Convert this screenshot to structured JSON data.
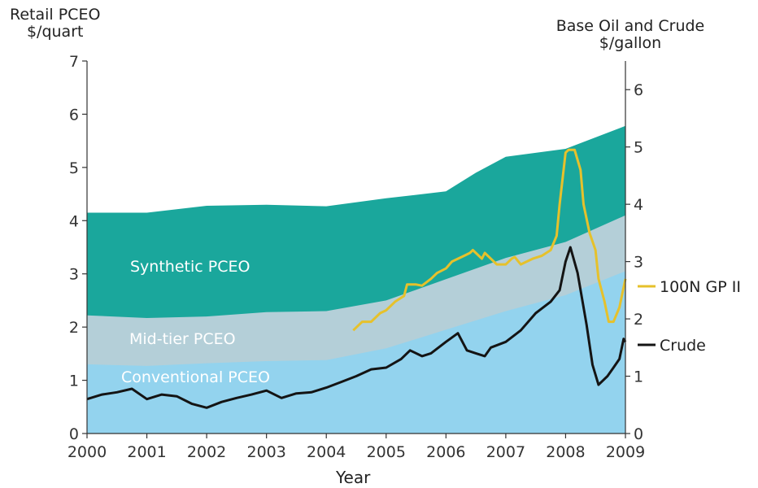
{
  "left_axis_title": [
    "Retail PCEO",
    "$/quart"
  ],
  "right_axis_title": [
    "Base Oil and Crude",
    "$/gallon"
  ],
  "x_axis_title": "Year",
  "chart_data": {
    "type": "area",
    "title": "",
    "xlabel": "Year",
    "ylabel_left": "Retail PCEO $/quart",
    "ylabel_right": "Base Oil and Crude $/gallon",
    "xlim": [
      2000,
      2009
    ],
    "ylim_left": [
      0,
      7
    ],
    "ylim_right": [
      0,
      6.5
    ],
    "x_ticks": [
      "2000",
      "2001",
      "2002",
      "2003",
      "2004",
      "2005",
      "2006",
      "2007",
      "2008",
      "2009"
    ],
    "left_ticks": [
      "0",
      "1",
      "2",
      "3",
      "4",
      "5",
      "6",
      "7"
    ],
    "right_ticks": [
      "0",
      "1",
      "2",
      "3",
      "4",
      "5",
      "6"
    ],
    "grid": false,
    "colors": {
      "synthetic": "#1aa79c",
      "midtier": "#b4cfd8",
      "conventional": "#93d3ee",
      "base_oil": "#e6c12b",
      "crude": "#141414"
    },
    "area_series": [
      {
        "name": "Synthetic PCEO",
        "axis": "left",
        "x": [
          2000,
          2001,
          2002,
          2003,
          2004,
          2005,
          2006,
          2006.5,
          2007,
          2008,
          2009
        ],
        "y": [
          4.15,
          4.15,
          4.28,
          4.3,
          4.27,
          4.42,
          4.55,
          4.9,
          5.2,
          5.35,
          5.78
        ]
      },
      {
        "name": "Mid-tier PCEO",
        "axis": "left",
        "x": [
          2000,
          2001,
          2002,
          2003,
          2004,
          2005,
          2006,
          2007,
          2008,
          2009
        ],
        "y": [
          2.22,
          2.17,
          2.2,
          2.28,
          2.3,
          2.5,
          2.9,
          3.3,
          3.6,
          4.1
        ]
      },
      {
        "name": "Conventional PCEO",
        "axis": "left",
        "x": [
          2000,
          2001,
          2002,
          2003,
          2004,
          2005,
          2006,
          2007,
          2008,
          2009
        ],
        "y": [
          1.3,
          1.27,
          1.32,
          1.36,
          1.38,
          1.6,
          1.95,
          2.3,
          2.6,
          3.05
        ]
      }
    ],
    "line_series": [
      {
        "name": "100N GP II",
        "axis": "right",
        "x": [
          2004.45,
          2004.6,
          2004.75,
          2004.9,
          2005.0,
          2005.15,
          2005.3,
          2005.35,
          2005.5,
          2005.6,
          2005.75,
          2005.85,
          2006.0,
          2006.1,
          2006.2,
          2006.3,
          2006.4,
          2006.45,
          2006.5,
          2006.6,
          2006.65,
          2006.75,
          2006.85,
          2007.0,
          2007.1,
          2007.15,
          2007.25,
          2007.35,
          2007.45,
          2007.6,
          2007.75,
          2007.85,
          2007.9,
          2008.0,
          2008.05,
          2008.15,
          2008.25,
          2008.3,
          2008.4,
          2008.5,
          2008.55,
          2008.65,
          2008.72,
          2008.8,
          2008.9,
          2009.0
        ],
        "y": [
          1.8,
          1.95,
          1.95,
          2.1,
          2.15,
          2.3,
          2.4,
          2.6,
          2.6,
          2.58,
          2.7,
          2.8,
          2.88,
          3.0,
          3.05,
          3.1,
          3.15,
          3.2,
          3.15,
          3.05,
          3.15,
          3.05,
          2.95,
          2.95,
          3.05,
          3.08,
          2.95,
          3.0,
          3.05,
          3.1,
          3.2,
          3.45,
          4.0,
          4.9,
          4.95,
          4.95,
          4.6,
          4.0,
          3.5,
          3.2,
          2.7,
          2.3,
          1.95,
          1.95,
          2.2,
          2.7
        ]
      },
      {
        "name": "Crude",
        "axis": "right",
        "x": [
          2000,
          2000.25,
          2000.5,
          2000.75,
          2001,
          2001.25,
          2001.5,
          2001.75,
          2002,
          2002.25,
          2002.5,
          2002.75,
          2003,
          2003.25,
          2003.5,
          2003.75,
          2004,
          2004.25,
          2004.5,
          2004.75,
          2005,
          2005.25,
          2005.4,
          2005.6,
          2005.75,
          2006,
          2006.2,
          2006.35,
          2006.5,
          2006.65,
          2006.75,
          2007,
          2007.25,
          2007.5,
          2007.75,
          2007.9,
          2008,
          2008.08,
          2008.2,
          2008.35,
          2008.45,
          2008.55,
          2008.7,
          2008.8,
          2008.9,
          2008.97,
          2009.0
        ],
        "y": [
          0.6,
          0.68,
          0.72,
          0.78,
          0.6,
          0.68,
          0.65,
          0.52,
          0.45,
          0.55,
          0.62,
          0.68,
          0.75,
          0.62,
          0.7,
          0.72,
          0.8,
          0.9,
          1.0,
          1.12,
          1.15,
          1.3,
          1.45,
          1.35,
          1.4,
          1.6,
          1.75,
          1.45,
          1.4,
          1.35,
          1.5,
          1.6,
          1.8,
          2.1,
          2.3,
          2.5,
          3.0,
          3.25,
          2.8,
          1.9,
          1.2,
          0.85,
          1.0,
          1.15,
          1.3,
          1.65,
          1.6
        ]
      }
    ],
    "area_labels": [
      "Synthetic PCEO",
      "Mid-tier PCEO",
      "Conventional PCEO"
    ],
    "legend": [
      {
        "label": "100N GP II",
        "series": "100N GP II"
      },
      {
        "label": "Crude",
        "series": "Crude"
      }
    ],
    "legend_placement": "right, outside plot"
  }
}
